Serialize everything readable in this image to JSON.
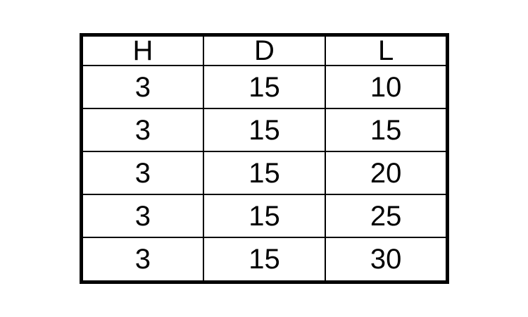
{
  "chart_data": {
    "type": "table",
    "title": "",
    "columns": [
      "H",
      "D",
      "L"
    ],
    "rows": [
      [
        "3",
        "15",
        "10"
      ],
      [
        "3",
        "15",
        "15"
      ],
      [
        "3",
        "15",
        "20"
      ],
      [
        "3",
        "15",
        "25"
      ],
      [
        "3",
        "15",
        "30"
      ]
    ]
  },
  "colors": {
    "border": "#000000",
    "background": "#ffffff",
    "text": "#000000"
  }
}
